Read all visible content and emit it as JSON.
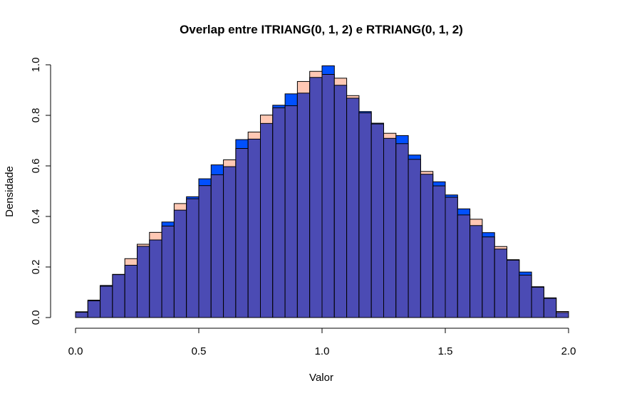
{
  "chart_data": {
    "type": "bar",
    "title": "Overlap entre ITRIANG(0, 1, 2) e RTRIANG(0, 1, 2)",
    "xlabel": "Valor",
    "ylabel": "Densidade",
    "xlim": [
      0,
      2
    ],
    "ylim": [
      0,
      1
    ],
    "x_ticks": [
      "0.0",
      "0.5",
      "1.0",
      "1.5",
      "2.0"
    ],
    "y_ticks": [
      "0.0",
      "0.2",
      "0.4",
      "0.6",
      "0.8",
      "1.0"
    ],
    "grid": false,
    "legend": "none",
    "bin_width": 0.05,
    "bin_start": 0,
    "colors": {
      "series_a": "#0050ff",
      "series_b": "#ffc8b4",
      "overlap": "#4b4bb4",
      "bar_border": "#000000"
    },
    "series": [
      {
        "values": [
          0.023,
          0.069,
          0.127,
          0.171,
          0.207,
          0.282,
          0.307,
          0.378,
          0.425,
          0.478,
          0.549,
          0.604,
          0.597,
          0.704,
          0.706,
          0.768,
          0.84,
          0.885,
          0.888,
          0.95,
          0.996,
          0.919,
          0.868,
          0.815,
          0.769,
          0.709,
          0.72,
          0.643,
          0.567,
          0.537,
          0.485,
          0.43,
          0.364,
          0.336,
          0.271,
          0.229,
          0.18,
          0.122,
          0.078,
          0.02
        ]
      },
      {
        "values": [
          0.021,
          0.066,
          0.124,
          0.17,
          0.233,
          0.29,
          0.337,
          0.362,
          0.451,
          0.47,
          0.522,
          0.565,
          0.624,
          0.669,
          0.734,
          0.801,
          0.83,
          0.838,
          0.934,
          0.974,
          0.962,
          0.947,
          0.878,
          0.81,
          0.766,
          0.729,
          0.688,
          0.626,
          0.578,
          0.521,
          0.476,
          0.406,
          0.389,
          0.319,
          0.281,
          0.227,
          0.168,
          0.12,
          0.076,
          0.024
        ]
      }
    ]
  }
}
